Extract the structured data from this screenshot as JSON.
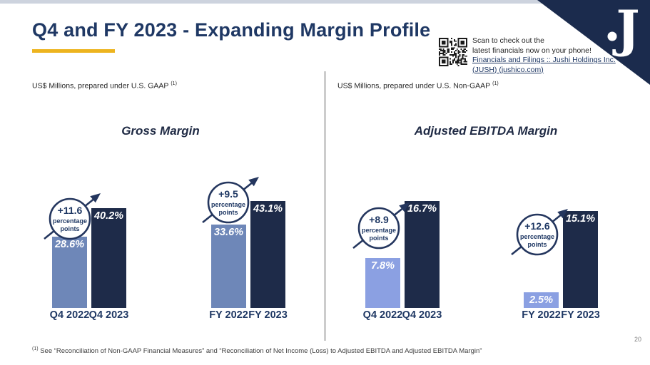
{
  "slide": {
    "title": "Q4 and FY 2023 - Expanding Margin Profile",
    "page_number": "20",
    "footnote": {
      "sup": "(1)",
      "text": "See “Reconciliation of Non-GAAP Financial Measures” and “Reconciliation of Net Income (Loss) to Adjusted EBITDA and Adjusted EBITDA Margin”"
    }
  },
  "logo": {
    "letter": "J"
  },
  "qr_panel": {
    "line1": "Scan to check out the",
    "line2": "latest financials now on your phone!",
    "link_line1": " Financials and Filings :: Jushi Holdings Inc.",
    "link_line2": "(JUSH) (jushico.com)"
  },
  "colors": {
    "navy_dark": "#1e2b49",
    "navy_text": "#1f3864",
    "navy_corner": "#1b2b4d",
    "steel_blue": "#6e87b8",
    "periwinkle": "#8ba0e2",
    "gold": "#edb41f",
    "top_bar_gray": "#cdd3de"
  },
  "chart_data": [
    {
      "type": "bar",
      "title": "Gross Margin",
      "note": "US$ Millions, prepared under U.S. GAAP",
      "note_sup": "(1)",
      "categories": [
        "Q4 2022",
        "Q4 2023",
        "FY 2022",
        "FY 2023"
      ],
      "values": [
        28.6,
        40.2,
        33.6,
        43.1
      ],
      "value_labels": [
        "28.6%",
        "40.2%",
        "33.6%",
        "43.1%"
      ],
      "bar_colors": [
        "steel_blue",
        "navy_dark",
        "steel_blue",
        "navy_dark"
      ],
      "unit": "%",
      "ylim": [
        0,
        45
      ],
      "grid": false,
      "annotations": [
        {
          "value": "+11.6",
          "caption1": "percentage",
          "caption2": "points",
          "between": [
            "Q4 2022",
            "Q4 2023"
          ]
        },
        {
          "value": "+9.5",
          "caption1": "percentage",
          "caption2": "points",
          "between": [
            "FY 2022",
            "FY 2023"
          ]
        }
      ]
    },
    {
      "type": "bar",
      "title": "Adjusted EBITDA Margin",
      "note": "US$ Millions, prepared under U.S. Non-GAAP",
      "note_sup": "(1)",
      "categories": [
        "Q4 2022",
        "Q4 2023",
        "FY 2022",
        "FY 2023"
      ],
      "values": [
        7.8,
        16.7,
        2.5,
        15.1
      ],
      "value_labels": [
        "7.8%",
        "16.7%",
        "2.5%",
        "15.1%"
      ],
      "bar_colors": [
        "periwinkle",
        "navy_dark",
        "periwinkle",
        "navy_dark"
      ],
      "unit": "%",
      "ylim": [
        0,
        18
      ],
      "grid": false,
      "annotations": [
        {
          "value": "+8.9",
          "caption1": "percentage",
          "caption2": "points",
          "between": [
            "Q4 2022",
            "Q4 2023"
          ]
        },
        {
          "value": "+12.6",
          "caption1": "percentage",
          "caption2": "points",
          "between": [
            "FY 2022",
            "FY 2023"
          ]
        }
      ]
    }
  ]
}
